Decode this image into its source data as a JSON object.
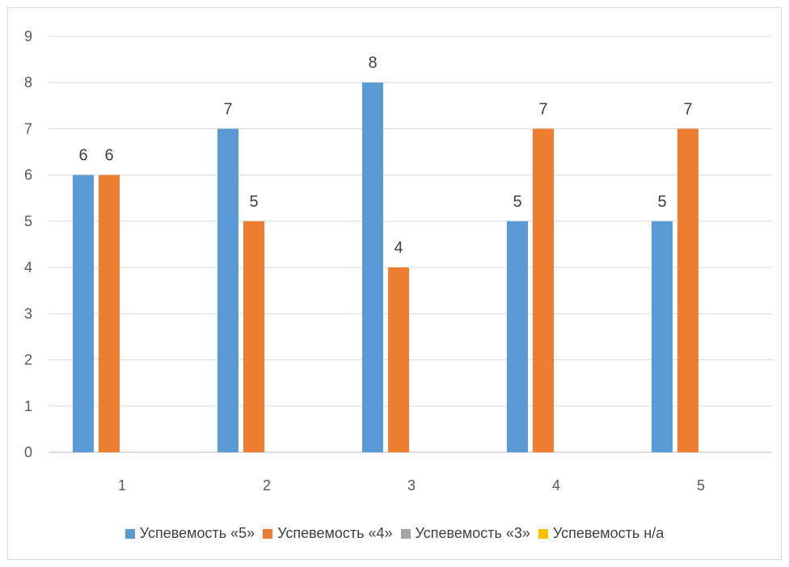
{
  "chart_data": {
    "type": "bar",
    "title": "",
    "xlabel": "",
    "ylabel": "",
    "categories": [
      "1",
      "2",
      "3",
      "4",
      "5"
    ],
    "ylim": [
      0,
      9
    ],
    "yticks": [
      0,
      1,
      2,
      3,
      4,
      5,
      6,
      7,
      8,
      9
    ],
    "grid": true,
    "legend_position": "bottom",
    "series": [
      {
        "name": "Успевемость «5»",
        "color": "#5b9bd5",
        "values": [
          6,
          7,
          8,
          5,
          5
        ]
      },
      {
        "name": "Успевемость «4»",
        "color": "#ed7d31",
        "values": [
          6,
          5,
          4,
          7,
          7
        ]
      },
      {
        "name": "Успевемость «3»",
        "color": "#a5a5a5",
        "values": [
          0,
          0,
          0,
          0,
          0
        ]
      },
      {
        "name": "Успевемость н/а",
        "color": "#ffc000",
        "values": [
          0,
          0,
          0,
          0,
          0
        ]
      }
    ],
    "data_labels_shown_for": [
      "Успевемость «5»",
      "Успевемость «4»"
    ]
  }
}
